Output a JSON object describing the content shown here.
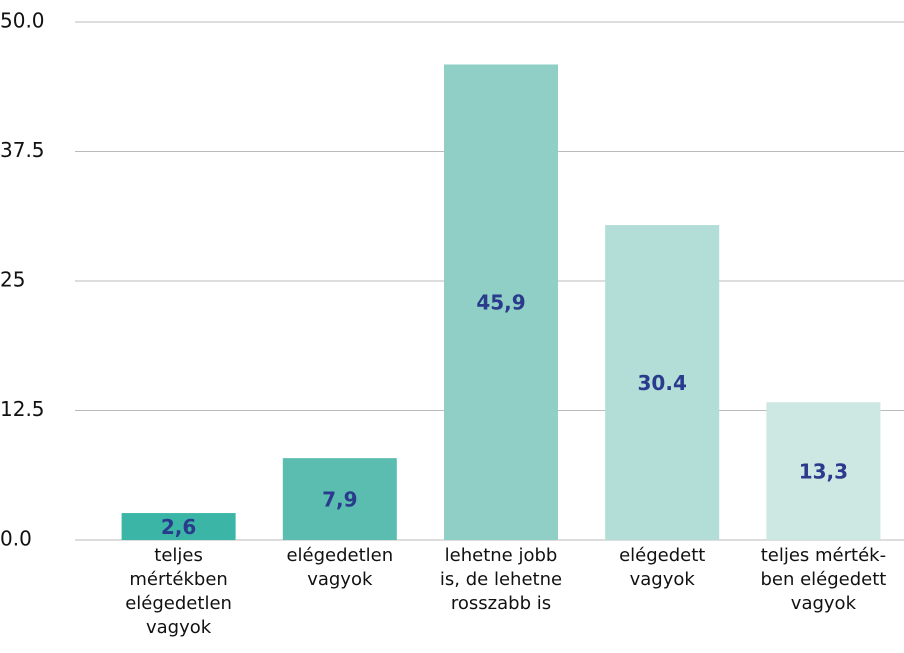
{
  "chart_data": {
    "type": "bar",
    "categories": [
      "teljes\nmértékben\nelégedetlen\nvagyok",
      "elégedetlen\nvagyok",
      "lehetne jobb\nis, de lehetne\nrosszabb is",
      "elégedett\nvagyok",
      "teljes mérték-\nben elégedett\nvagyok"
    ],
    "values": [
      2.6,
      7.9,
      45.9,
      30.4,
      13.3
    ],
    "value_labels": [
      "2,6",
      "7,9",
      "45,9",
      "30.4",
      "13,3"
    ],
    "colors": [
      "#3ab5a6",
      "#5bbcb0",
      "#8fcfc5",
      "#b2ded7",
      "#cde7e3"
    ],
    "ylim": [
      0,
      50
    ],
    "yticks": [
      {
        "value": 0,
        "label": "0.0"
      },
      12.5,
      25,
      37.5,
      {
        "value": 50,
        "label": "50.0"
      }
    ],
    "grid": true
  }
}
